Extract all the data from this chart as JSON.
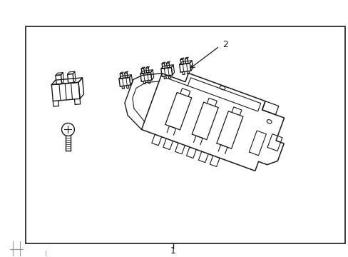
{
  "bg_color": "#ffffff",
  "line_color": "#1a1a1a",
  "gray_color": "#999999",
  "label1": "1",
  "label2": "2",
  "border": [
    35,
    18,
    450,
    305
  ],
  "figsize": [
    4.89,
    3.6
  ],
  "dpi": 100
}
